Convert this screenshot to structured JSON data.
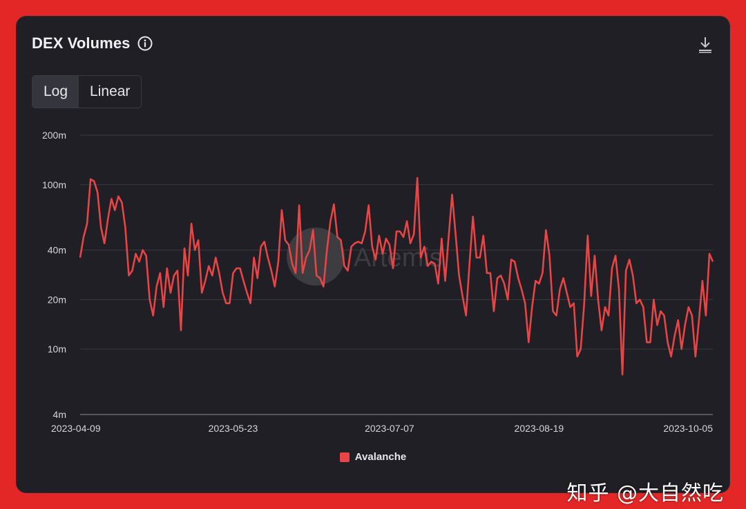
{
  "header": {
    "title": "DEX Volumes"
  },
  "toggle": {
    "log_label": "Log",
    "linear_label": "Linear",
    "selected": "Log"
  },
  "icons": {
    "info": "info-icon",
    "download": "download-icon"
  },
  "watermark": {
    "text": "知乎 @大自然吃",
    "logo_text": "Artemis"
  },
  "colors": {
    "series": "#e84545",
    "background": "#1f1f25",
    "frame": "#e32727"
  },
  "chart_data": {
    "type": "line",
    "yscale": "log",
    "ylim": [
      4,
      200
    ],
    "y_unit": "m",
    "yticks": [
      "200m",
      "100m",
      "40m",
      "20m",
      "10m",
      "4m"
    ],
    "ytick_values": [
      200,
      100,
      40,
      20,
      10,
      4
    ],
    "xticks": [
      "2023-04-09",
      "2023-05-23",
      "2023-07-07",
      "2023-08-19",
      "2023-10-05"
    ],
    "x_start": "2023-04-09",
    "x_end": "2023-10-08",
    "grid": true,
    "legend_position": "bottom-center",
    "series": [
      {
        "name": "Avalanche",
        "color": "#e84545",
        "x": [
          "2023-04-09",
          "2023-04-10",
          "2023-04-11",
          "2023-04-12",
          "2023-04-13",
          "2023-04-14",
          "2023-04-15",
          "2023-04-16",
          "2023-04-17",
          "2023-04-18",
          "2023-04-19",
          "2023-04-20",
          "2023-04-21",
          "2023-04-22",
          "2023-04-23",
          "2023-04-24",
          "2023-04-25",
          "2023-04-26",
          "2023-04-27",
          "2023-04-28",
          "2023-04-29",
          "2023-04-30",
          "2023-05-01",
          "2023-05-02",
          "2023-05-03",
          "2023-05-04",
          "2023-05-05",
          "2023-05-06",
          "2023-05-07",
          "2023-05-08",
          "2023-05-09",
          "2023-05-10",
          "2023-05-11",
          "2023-05-12",
          "2023-05-13",
          "2023-05-14",
          "2023-05-15",
          "2023-05-16",
          "2023-05-17",
          "2023-05-18",
          "2023-05-19",
          "2023-05-20",
          "2023-05-21",
          "2023-05-22",
          "2023-05-23",
          "2023-05-24",
          "2023-05-25",
          "2023-05-26",
          "2023-05-27",
          "2023-05-28",
          "2023-05-29",
          "2023-05-30",
          "2023-05-31",
          "2023-06-01",
          "2023-06-02",
          "2023-06-03",
          "2023-06-04",
          "2023-06-05",
          "2023-06-06",
          "2023-06-07",
          "2023-06-08",
          "2023-06-09",
          "2023-06-10",
          "2023-06-11",
          "2023-06-12",
          "2023-06-13",
          "2023-06-14",
          "2023-06-15",
          "2023-06-16",
          "2023-06-17",
          "2023-06-18",
          "2023-06-19",
          "2023-06-20",
          "2023-06-21",
          "2023-06-22",
          "2023-06-23",
          "2023-06-24",
          "2023-06-25",
          "2023-06-26",
          "2023-06-27",
          "2023-06-28",
          "2023-06-29",
          "2023-06-30",
          "2023-07-01",
          "2023-07-02",
          "2023-07-03",
          "2023-07-04",
          "2023-07-05",
          "2023-07-06",
          "2023-07-07",
          "2023-07-08",
          "2023-07-09",
          "2023-07-10",
          "2023-07-11",
          "2023-07-12",
          "2023-07-13",
          "2023-07-14",
          "2023-07-15",
          "2023-07-16",
          "2023-07-17",
          "2023-07-18",
          "2023-07-19",
          "2023-07-20",
          "2023-07-21",
          "2023-07-22",
          "2023-07-23",
          "2023-07-24",
          "2023-07-25",
          "2023-07-26",
          "2023-07-27",
          "2023-07-28",
          "2023-07-29",
          "2023-07-30",
          "2023-07-31",
          "2023-08-01",
          "2023-08-02",
          "2023-08-03",
          "2023-08-04",
          "2023-08-05",
          "2023-08-06",
          "2023-08-07",
          "2023-08-08",
          "2023-08-09",
          "2023-08-10",
          "2023-08-11",
          "2023-08-12",
          "2023-08-13",
          "2023-08-14",
          "2023-08-15",
          "2023-08-16",
          "2023-08-17",
          "2023-08-18",
          "2023-08-19",
          "2023-08-20",
          "2023-08-21",
          "2023-08-22",
          "2023-08-23",
          "2023-08-24",
          "2023-08-25",
          "2023-08-26",
          "2023-08-27",
          "2023-08-28",
          "2023-08-29",
          "2023-08-30",
          "2023-08-31",
          "2023-09-01",
          "2023-09-02",
          "2023-09-03",
          "2023-09-04",
          "2023-09-05",
          "2023-09-06",
          "2023-09-07",
          "2023-09-08",
          "2023-09-09",
          "2023-09-10",
          "2023-09-11",
          "2023-09-12",
          "2023-09-13",
          "2023-09-14",
          "2023-09-15",
          "2023-09-16",
          "2023-09-17",
          "2023-09-18",
          "2023-09-19",
          "2023-09-20",
          "2023-09-21",
          "2023-09-22",
          "2023-09-23",
          "2023-09-24",
          "2023-09-25",
          "2023-09-26",
          "2023-09-27",
          "2023-09-28",
          "2023-09-29",
          "2023-09-30",
          "2023-10-01",
          "2023-10-02",
          "2023-10-03",
          "2023-10-04",
          "2023-10-05",
          "2023-10-06",
          "2023-10-07",
          "2023-10-08"
        ],
        "values": [
          36,
          48,
          58,
          108,
          105,
          90,
          55,
          44,
          62,
          82,
          70,
          85,
          78,
          55,
          28,
          30,
          38,
          34,
          40,
          37,
          20,
          16,
          24,
          29,
          18,
          31,
          22,
          28,
          30,
          13,
          41,
          28,
          58,
          40,
          46,
          22,
          26,
          32,
          28,
          36,
          29,
          22,
          19,
          19,
          29,
          31,
          31,
          26,
          22,
          19,
          36,
          27,
          42,
          45,
          36,
          30,
          24,
          34,
          70,
          46,
          43,
          33,
          29,
          75,
          29,
          36,
          40,
          53,
          28,
          27,
          24,
          40,
          60,
          76,
          48,
          46,
          32,
          30,
          42,
          44,
          45,
          44,
          52,
          75,
          42,
          35,
          49,
          38,
          47,
          43,
          31,
          52,
          52,
          48,
          60,
          44,
          50,
          110,
          36,
          42,
          32,
          34,
          33,
          25,
          47,
          26,
          48,
          87,
          50,
          28,
          21,
          16,
          33,
          64,
          36,
          36,
          49,
          29,
          29,
          17,
          27,
          28,
          25,
          20,
          35,
          34,
          27,
          23,
          19,
          11,
          18,
          26,
          25,
          29,
          53,
          37,
          17,
          16,
          23,
          27,
          22,
          18,
          19,
          9,
          10,
          19,
          49,
          21,
          37,
          20,
          13,
          18,
          16,
          31,
          37,
          23,
          7,
          30,
          35,
          28,
          19,
          20,
          18,
          11,
          11,
          20,
          14,
          17,
          16,
          11,
          9,
          12,
          15,
          10,
          14,
          18,
          16,
          9,
          15,
          26,
          16,
          38,
          34
        ]
      }
    ]
  }
}
